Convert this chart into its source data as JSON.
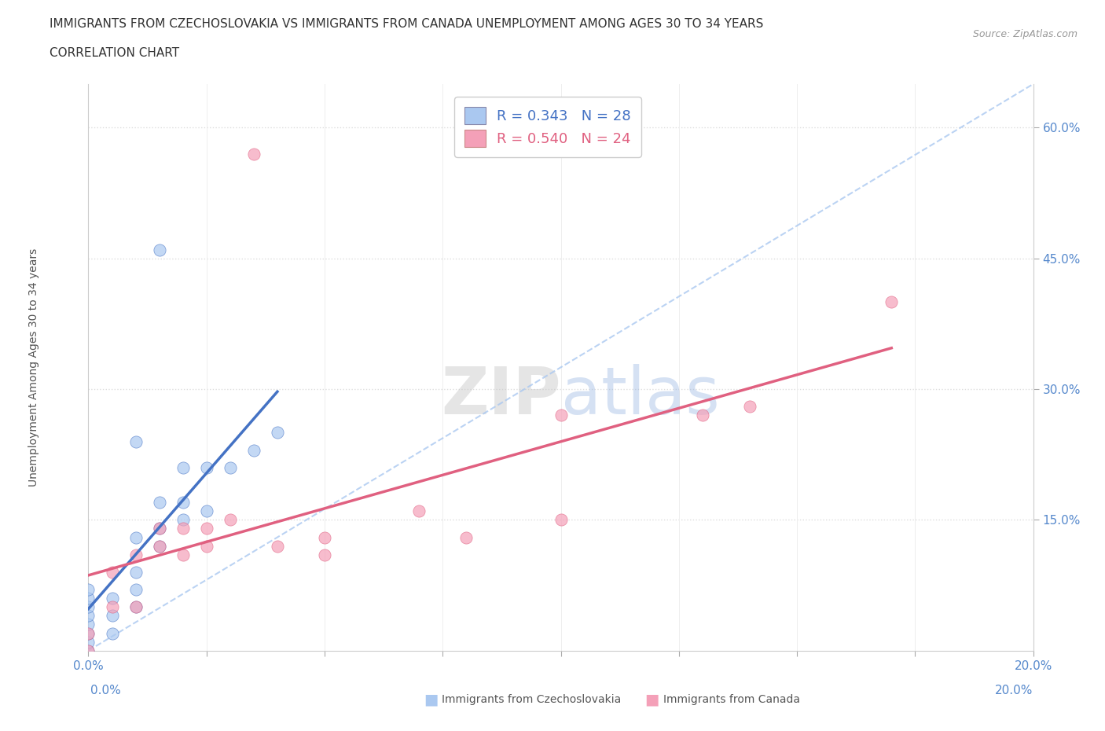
{
  "title_line1": "IMMIGRANTS FROM CZECHOSLOVAKIA VS IMMIGRANTS FROM CANADA UNEMPLOYMENT AMONG AGES 30 TO 34 YEARS",
  "title_line2": "CORRELATION CHART",
  "source_text": "Source: ZipAtlas.com",
  "ylabel": "Unemployment Among Ages 30 to 34 years",
  "xmin": 0.0,
  "xmax": 0.2,
  "ymin": 0.0,
  "ymax": 0.65,
  "color_blue": "#aac8f0",
  "color_pink": "#f4a0b8",
  "line_blue": "#4472c4",
  "line_pink": "#e06080",
  "diag_color": "#aac8f0",
  "R_czech": 0.343,
  "N_czech": 28,
  "R_canada": 0.54,
  "N_canada": 24,
  "czech_x": [
    0.0,
    0.0,
    0.0,
    0.0,
    0.0,
    0.0,
    0.0,
    0.0,
    0.005,
    0.005,
    0.005,
    0.01,
    0.01,
    0.01,
    0.01,
    0.01,
    0.015,
    0.015,
    0.015,
    0.015,
    0.02,
    0.02,
    0.02,
    0.025,
    0.025,
    0.03,
    0.035,
    0.04
  ],
  "czech_y": [
    0.0,
    0.01,
    0.02,
    0.03,
    0.04,
    0.05,
    0.06,
    0.07,
    0.02,
    0.04,
    0.06,
    0.05,
    0.07,
    0.09,
    0.13,
    0.24,
    0.12,
    0.14,
    0.17,
    0.46,
    0.15,
    0.17,
    0.21,
    0.16,
    0.21,
    0.21,
    0.23,
    0.25
  ],
  "canada_x": [
    0.0,
    0.0,
    0.005,
    0.005,
    0.01,
    0.01,
    0.015,
    0.015,
    0.02,
    0.02,
    0.025,
    0.025,
    0.03,
    0.035,
    0.04,
    0.05,
    0.05,
    0.07,
    0.08,
    0.1,
    0.1,
    0.13,
    0.14,
    0.17
  ],
  "canada_y": [
    0.0,
    0.02,
    0.05,
    0.09,
    0.05,
    0.11,
    0.12,
    0.14,
    0.11,
    0.14,
    0.12,
    0.14,
    0.15,
    0.57,
    0.12,
    0.11,
    0.13,
    0.16,
    0.13,
    0.15,
    0.27,
    0.27,
    0.28,
    0.4
  ],
  "watermark": "ZIPatlas",
  "bg_color": "#ffffff",
  "grid_color": "#e8e8e8"
}
